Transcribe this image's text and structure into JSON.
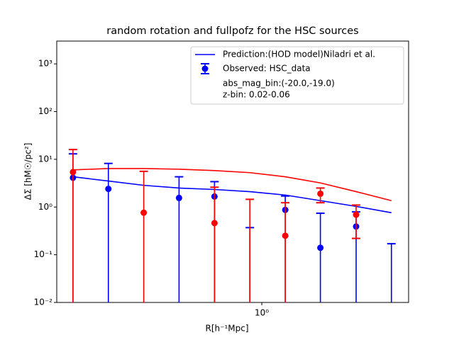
{
  "chart_data": {
    "type": "errorbar",
    "title": "random rotation and fullpofz for the HSC sources",
    "x_label": "R[h⁻¹Mpc]",
    "y_label": "ΔΣ [hM☉/pc²]",
    "log_x": true,
    "log_y": true,
    "x": [
      0.156,
      0.221,
      0.313,
      0.443,
      0.628,
      0.889,
      1.26,
      1.78,
      2.53,
      3.58
    ],
    "xlim": [
      0.133,
      4.24
    ],
    "xticks": [
      {
        "value": 1,
        "label": "10⁰"
      }
    ],
    "ylim": [
      0.01,
      3000
    ],
    "yticks": [
      {
        "value": 0.01,
        "label": "10⁻²"
      },
      {
        "value": 0.1,
        "label": "10⁻¹"
      },
      {
        "value": 1,
        "label": "10⁰"
      },
      {
        "value": 10,
        "label": "10¹"
      },
      {
        "value": 100,
        "label": "10²"
      },
      {
        "value": 1000,
        "label": "10³"
      }
    ],
    "legend_position": "upper right",
    "legend_notes": [
      "abs_mag_bin:(-20.0,-19.0)",
      "z-bin: 0.02-0.06"
    ],
    "lines": [
      {
        "name": "Prediction:(HOD model)Niladri et al.",
        "color": "#0000ff",
        "values": [
          4.3,
          3.5,
          2.85,
          2.5,
          2.33,
          2.1,
          1.78,
          1.36,
          1.03,
          0.76
        ]
      },
      {
        "color": "#ff0000",
        "values": [
          6.0,
          6.4,
          6.4,
          6.2,
          5.8,
          5.25,
          4.3,
          3.2,
          2.1,
          1.36
        ]
      }
    ],
    "series": [
      {
        "name": "Observed: HSC_data",
        "color": "#0000ff",
        "values": [
          4.1,
          2.4,
          null,
          1.55,
          1.66,
          null,
          0.87,
          0.14,
          0.39,
          null
        ],
        "upper": [
          13,
          8.2,
          null,
          4.3,
          3.4,
          0.37,
          1.7,
          0.74,
          0.79,
          0.17
        ],
        "lower": [
          null,
          null,
          null,
          null,
          null,
          null,
          null,
          null,
          null,
          null
        ]
      },
      {
        "color": "#ff0000",
        "values": [
          5.4,
          null,
          0.76,
          null,
          0.46,
          null,
          0.25,
          1.9,
          0.69,
          null
        ],
        "upper": [
          16,
          null,
          5.6,
          null,
          2.6,
          1.45,
          1.23,
          2.5,
          1.1,
          null
        ],
        "lower": [
          null,
          null,
          null,
          null,
          null,
          null,
          null,
          1.23,
          0.22,
          null
        ]
      }
    ]
  }
}
